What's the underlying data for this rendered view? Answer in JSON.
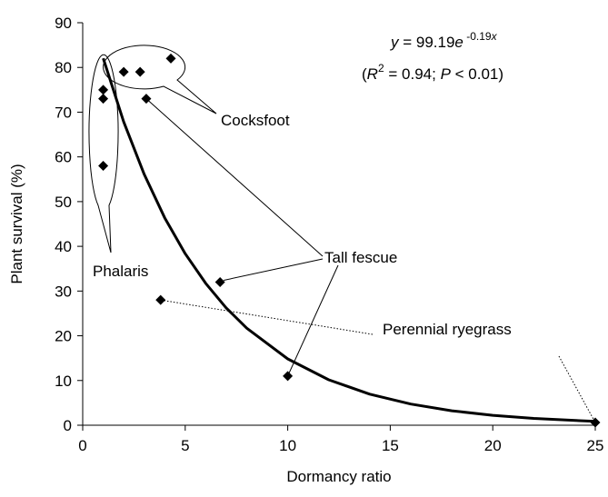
{
  "chart_data": {
    "type": "scatter",
    "xlabel": "Dormancy ratio",
    "ylabel": "Plant survival (%)",
    "xlim": [
      0,
      25
    ],
    "xticks": [
      0,
      5,
      10,
      15,
      20,
      25
    ],
    "ylim": [
      0,
      90
    ],
    "yticks": [
      0,
      10,
      20,
      30,
      40,
      50,
      60,
      70,
      80,
      90
    ],
    "series": [
      {
        "name": "Phalaris",
        "color": "#000000",
        "x": [
          1.0,
          1.0,
          1.0
        ],
        "values": [
          75,
          73,
          58
        ]
      },
      {
        "name": "Cocksfoot",
        "color": "#000000",
        "x": [
          2.0,
          2.8,
          4.3
        ],
        "values": [
          79,
          79,
          82
        ]
      },
      {
        "name": "Tall fescue",
        "color": "#000000",
        "x": [
          3.1,
          6.7,
          10.0
        ],
        "values": [
          73,
          32,
          11
        ]
      },
      {
        "name": "Perennial ryegrass",
        "color": "#000000",
        "x": [
          3.8,
          25.0
        ],
        "values": [
          28,
          0.6
        ]
      }
    ],
    "fit": {
      "color": "#000000",
      "x": [
        1,
        2,
        3,
        4,
        5,
        6,
        7,
        8,
        10,
        12,
        14,
        16,
        18,
        20,
        22,
        25
      ],
      "values": [
        82.03,
        67.84,
        56.1,
        46.39,
        38.36,
        31.72,
        26.23,
        21.69,
        14.84,
        10.15,
        6.94,
        4.74,
        3.24,
        2.22,
        1.52,
        0.86
      ]
    },
    "equation": [
      "y",
      " = 99.19",
      "e",
      " -0.19",
      "x"
    ],
    "statistics": [
      "(",
      "R",
      "2",
      " = 0.94; ",
      "P",
      " < 0.01)"
    ]
  }
}
